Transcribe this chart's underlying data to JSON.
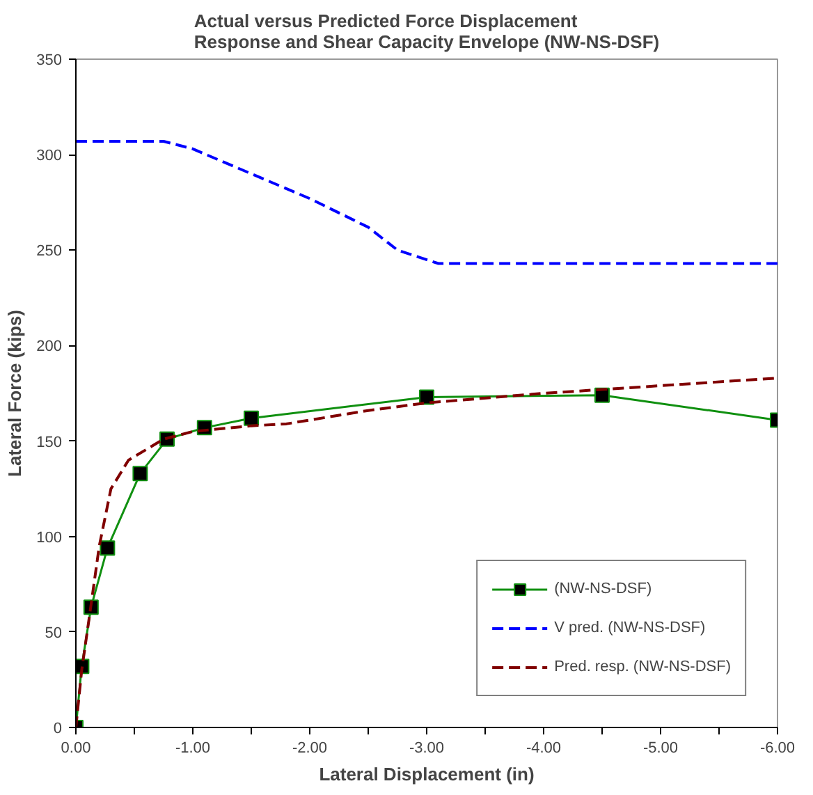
{
  "chart_data": {
    "type": "line",
    "title": "Actual versus Predicted Force Displacement\nResponse and Shear Capacity Envelope (NW-NS-DSF)",
    "xlabel": "Lateral Displacement (in)",
    "ylabel": "Lateral Force (kips)",
    "xlim": [
      0,
      -6
    ],
    "ylim": [
      0,
      350
    ],
    "xticks": [
      {
        "value": 0,
        "label": "0.00"
      },
      {
        "value": -0.5,
        "label": null
      },
      {
        "value": -1,
        "label": "-1.00"
      },
      {
        "value": -1.5,
        "label": null
      },
      {
        "value": -2,
        "label": "-2.00"
      },
      {
        "value": -2.5,
        "label": null
      },
      {
        "value": -3,
        "label": "-3.00"
      },
      {
        "value": -3.5,
        "label": null
      },
      {
        "value": -4,
        "label": "-4.00"
      },
      {
        "value": -4.5,
        "label": null
      },
      {
        "value": -5,
        "label": "-5.00"
      },
      {
        "value": -5.5,
        "label": null
      },
      {
        "value": -6,
        "label": "-6.00"
      }
    ],
    "yticks": [
      0,
      50,
      100,
      150,
      200,
      250,
      300,
      350
    ],
    "grid": false,
    "legend": "bottom right",
    "series": [
      {
        "name": "(NW-NS-DSF)",
        "color": "#109010",
        "marker": "square",
        "line_style": "solid",
        "x": [
          0,
          -0.05,
          -0.13,
          -0.27,
          -0.55,
          -0.78,
          -1.1,
          -1.5,
          -3.0,
          -4.5,
          -6.0
        ],
        "values": [
          0,
          32,
          63,
          94,
          133,
          151,
          157,
          162,
          173,
          174,
          161
        ]
      },
      {
        "name": "V pred. (NW-NS-DSF)",
        "color": "#0000ff",
        "marker": "none",
        "line_style": "dashed",
        "x": [
          0,
          -0.75,
          -1.0,
          -1.5,
          -2.0,
          -2.5,
          -2.75,
          -3.1,
          -6.0
        ],
        "values": [
          307,
          307,
          303,
          290,
          277,
          262,
          250,
          243,
          243
        ]
      },
      {
        "name": "Pred. resp. (NW-NS-DSF)",
        "color": "#800000",
        "marker": "none",
        "line_style": "dashed",
        "x": [
          0,
          -0.05,
          -0.12,
          -0.2,
          -0.3,
          -0.45,
          -0.75,
          -1.0,
          -1.5,
          -1.8,
          -2.5,
          -3.0,
          -4.0,
          -5.0,
          -6.0
        ],
        "values": [
          0,
          30,
          60,
          95,
          125,
          140,
          151,
          155,
          158,
          159,
          166,
          170,
          175,
          179,
          183
        ]
      }
    ]
  }
}
